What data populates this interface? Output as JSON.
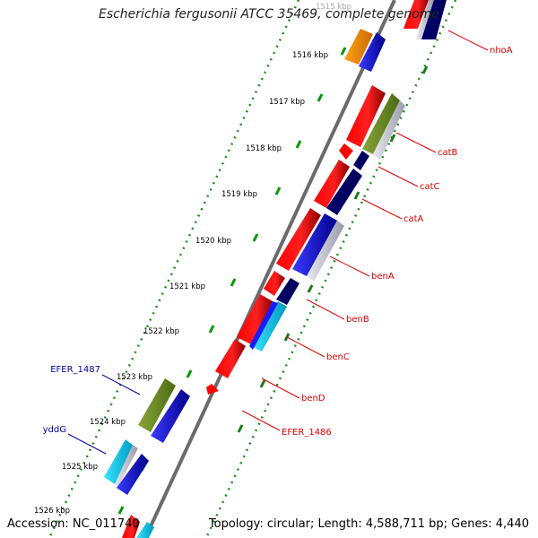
{
  "title": "Escherichia fergusonii ATCC 35469, complete genome",
  "footer": {
    "accession": "Accession: NC_011740",
    "summary": "Topology: circular; Length: 4,588,711 bp; Genes: 4,440"
  },
  "ticks": [
    {
      "label": "1515 kbp"
    },
    {
      "label": "1516 kbp"
    },
    {
      "label": "1517 kbp"
    },
    {
      "label": "1518 kbp"
    },
    {
      "label": "1519 kbp"
    },
    {
      "label": "1520 kbp"
    },
    {
      "label": "1521 kbp"
    },
    {
      "label": "1522 kbp"
    },
    {
      "label": "1523 kbp"
    },
    {
      "label": "1524 kbp"
    },
    {
      "label": "1525 kbp"
    },
    {
      "label": "1526 kbp"
    }
  ],
  "gene_labels_right": [
    "nhoA",
    "catB",
    "catC",
    "catA",
    "benA",
    "benB",
    "benC",
    "benD",
    "EFER_1486"
  ],
  "gene_labels_left": [
    "EFER_1487",
    "yddG"
  ],
  "colors": {
    "red_label": "#dd0000",
    "blue_label": "#0000aa",
    "backbone": "#6b6b6b",
    "dotted_guide": "#1e8b1e",
    "gene_red": "#ff0000",
    "gene_blue": "#1a1aff",
    "gene_navy": "#000080",
    "gene_orange": "#ff8c00",
    "gene_olive": "#6b8e23",
    "gene_cyan": "#00ccff",
    "tick_green": "#009900"
  }
}
